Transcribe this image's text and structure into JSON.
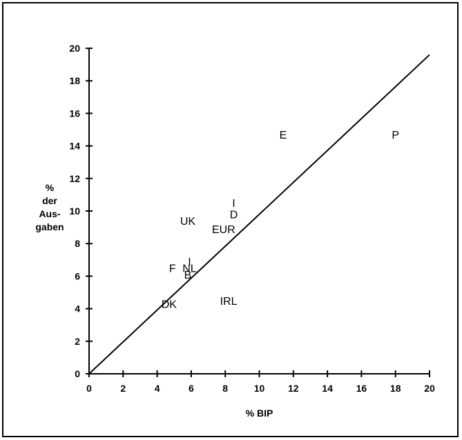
{
  "chart_data": {
    "type": "scatter",
    "title": "",
    "xlabel": "% BIP",
    "ylabel_lines": [
      "%",
      "der",
      "Aus-",
      "gaben"
    ],
    "xlim": [
      0,
      20
    ],
    "ylim": [
      0,
      20
    ],
    "xticks": [
      0,
      2,
      4,
      6,
      8,
      10,
      12,
      14,
      16,
      18,
      20
    ],
    "yticks": [
      0,
      2,
      4,
      6,
      8,
      10,
      12,
      14,
      16,
      18,
      20
    ],
    "grid": false,
    "reference_line": {
      "from": [
        0,
        0
      ],
      "to": [
        20,
        19.6
      ]
    },
    "points": [
      {
        "label": "E",
        "x": 11.4,
        "y": 14.7
      },
      {
        "label": "P",
        "x": 18.0,
        "y": 14.7
      },
      {
        "label": "I",
        "x": 8.5,
        "y": 10.5
      },
      {
        "label": "D",
        "x": 8.5,
        "y": 9.8
      },
      {
        "label": "UK",
        "x": 5.8,
        "y": 9.4
      },
      {
        "label": "EUR",
        "x": 7.9,
        "y": 8.9
      },
      {
        "label": "I",
        "x": 5.9,
        "y": 6.9
      },
      {
        "label": "F",
        "x": 4.9,
        "y": 6.5
      },
      {
        "label": "NL",
        "x": 5.9,
        "y": 6.5
      },
      {
        "label": "B",
        "x": 5.8,
        "y": 6.1
      },
      {
        "label": "DK",
        "x": 4.7,
        "y": 4.3
      },
      {
        "label": "IRL",
        "x": 8.2,
        "y": 4.5
      }
    ]
  }
}
